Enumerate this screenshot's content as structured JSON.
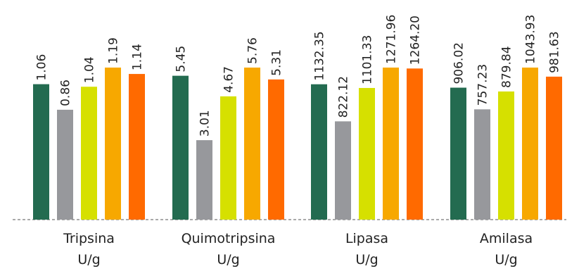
{
  "chart_data": {
    "type": "bar",
    "categories": [
      {
        "name": "Tripsina",
        "unit": "U/g"
      },
      {
        "name": "Quimotripsina",
        "unit": "U/g"
      },
      {
        "name": "Lipasa",
        "unit": "U/g"
      },
      {
        "name": "Amilasa",
        "unit": "U/g"
      }
    ],
    "series": [
      {
        "color": "#236b50",
        "values": [
          1.06,
          5.45,
          1132.35,
          906.02
        ],
        "labels": [
          "1.06",
          "5.45",
          "1132.35",
          "906.02"
        ]
      },
      {
        "color": "#97989c",
        "values": [
          0.86,
          3.01,
          822.12,
          757.23
        ],
        "labels": [
          "0.86",
          "3.01",
          "822.12",
          "757.23"
        ]
      },
      {
        "color": "#d6e000",
        "values": [
          1.04,
          4.67,
          1101.33,
          879.84
        ],
        "labels": [
          "1.04",
          "4.67",
          "1101.33",
          "879.84"
        ]
      },
      {
        "color": "#f7a800",
        "values": [
          1.19,
          5.76,
          1271.96,
          1043.93
        ],
        "labels": [
          "1.19",
          "5.76",
          "1271.96",
          "1043.93"
        ]
      },
      {
        "color": "#ff6a00",
        "values": [
          1.14,
          5.31,
          1264.2,
          981.63
        ],
        "labels": [
          "1.14",
          "5.31",
          "1264.20",
          "981.63"
        ]
      }
    ],
    "scale": "independent per category group",
    "baseline": "dashed",
    "legend": "none",
    "grid": false
  }
}
